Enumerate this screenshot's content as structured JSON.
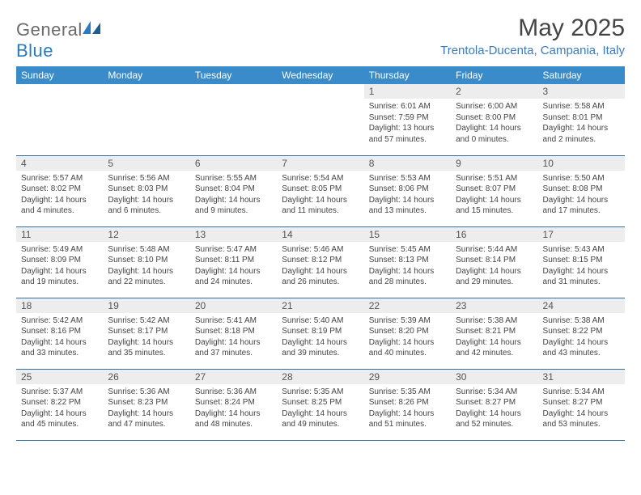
{
  "logo": {
    "text1": "General",
    "text2": "Blue"
  },
  "title": "May 2025",
  "location": "Trentola-Ducenta, Campania, Italy",
  "dow": [
    "Sunday",
    "Monday",
    "Tuesday",
    "Wednesday",
    "Thursday",
    "Friday",
    "Saturday"
  ],
  "colors": {
    "header_bg": "#3a8bc9",
    "header_text": "#ffffff",
    "daynum_bg": "#ededed",
    "border": "#2f6fa8",
    "location": "#3a7bbf",
    "logo_gray": "#6b6b6b",
    "logo_blue": "#2a7bbf"
  },
  "weeks": [
    [
      null,
      null,
      null,
      null,
      {
        "n": "1",
        "sr": "6:01 AM",
        "ss": "7:59 PM",
        "dl": "13 hours and 57 minutes."
      },
      {
        "n": "2",
        "sr": "6:00 AM",
        "ss": "8:00 PM",
        "dl": "14 hours and 0 minutes."
      },
      {
        "n": "3",
        "sr": "5:58 AM",
        "ss": "8:01 PM",
        "dl": "14 hours and 2 minutes."
      }
    ],
    [
      {
        "n": "4",
        "sr": "5:57 AM",
        "ss": "8:02 PM",
        "dl": "14 hours and 4 minutes."
      },
      {
        "n": "5",
        "sr": "5:56 AM",
        "ss": "8:03 PM",
        "dl": "14 hours and 6 minutes."
      },
      {
        "n": "6",
        "sr": "5:55 AM",
        "ss": "8:04 PM",
        "dl": "14 hours and 9 minutes."
      },
      {
        "n": "7",
        "sr": "5:54 AM",
        "ss": "8:05 PM",
        "dl": "14 hours and 11 minutes."
      },
      {
        "n": "8",
        "sr": "5:53 AM",
        "ss": "8:06 PM",
        "dl": "14 hours and 13 minutes."
      },
      {
        "n": "9",
        "sr": "5:51 AM",
        "ss": "8:07 PM",
        "dl": "14 hours and 15 minutes."
      },
      {
        "n": "10",
        "sr": "5:50 AM",
        "ss": "8:08 PM",
        "dl": "14 hours and 17 minutes."
      }
    ],
    [
      {
        "n": "11",
        "sr": "5:49 AM",
        "ss": "8:09 PM",
        "dl": "14 hours and 19 minutes."
      },
      {
        "n": "12",
        "sr": "5:48 AM",
        "ss": "8:10 PM",
        "dl": "14 hours and 22 minutes."
      },
      {
        "n": "13",
        "sr": "5:47 AM",
        "ss": "8:11 PM",
        "dl": "14 hours and 24 minutes."
      },
      {
        "n": "14",
        "sr": "5:46 AM",
        "ss": "8:12 PM",
        "dl": "14 hours and 26 minutes."
      },
      {
        "n": "15",
        "sr": "5:45 AM",
        "ss": "8:13 PM",
        "dl": "14 hours and 28 minutes."
      },
      {
        "n": "16",
        "sr": "5:44 AM",
        "ss": "8:14 PM",
        "dl": "14 hours and 29 minutes."
      },
      {
        "n": "17",
        "sr": "5:43 AM",
        "ss": "8:15 PM",
        "dl": "14 hours and 31 minutes."
      }
    ],
    [
      {
        "n": "18",
        "sr": "5:42 AM",
        "ss": "8:16 PM",
        "dl": "14 hours and 33 minutes."
      },
      {
        "n": "19",
        "sr": "5:42 AM",
        "ss": "8:17 PM",
        "dl": "14 hours and 35 minutes."
      },
      {
        "n": "20",
        "sr": "5:41 AM",
        "ss": "8:18 PM",
        "dl": "14 hours and 37 minutes."
      },
      {
        "n": "21",
        "sr": "5:40 AM",
        "ss": "8:19 PM",
        "dl": "14 hours and 39 minutes."
      },
      {
        "n": "22",
        "sr": "5:39 AM",
        "ss": "8:20 PM",
        "dl": "14 hours and 40 minutes."
      },
      {
        "n": "23",
        "sr": "5:38 AM",
        "ss": "8:21 PM",
        "dl": "14 hours and 42 minutes."
      },
      {
        "n": "24",
        "sr": "5:38 AM",
        "ss": "8:22 PM",
        "dl": "14 hours and 43 minutes."
      }
    ],
    [
      {
        "n": "25",
        "sr": "5:37 AM",
        "ss": "8:22 PM",
        "dl": "14 hours and 45 minutes."
      },
      {
        "n": "26",
        "sr": "5:36 AM",
        "ss": "8:23 PM",
        "dl": "14 hours and 47 minutes."
      },
      {
        "n": "27",
        "sr": "5:36 AM",
        "ss": "8:24 PM",
        "dl": "14 hours and 48 minutes."
      },
      {
        "n": "28",
        "sr": "5:35 AM",
        "ss": "8:25 PM",
        "dl": "14 hours and 49 minutes."
      },
      {
        "n": "29",
        "sr": "5:35 AM",
        "ss": "8:26 PM",
        "dl": "14 hours and 51 minutes."
      },
      {
        "n": "30",
        "sr": "5:34 AM",
        "ss": "8:27 PM",
        "dl": "14 hours and 52 minutes."
      },
      {
        "n": "31",
        "sr": "5:34 AM",
        "ss": "8:27 PM",
        "dl": "14 hours and 53 minutes."
      }
    ]
  ],
  "labels": {
    "sunrise": "Sunrise: ",
    "sunset": "Sunset: ",
    "daylight": "Daylight: "
  }
}
